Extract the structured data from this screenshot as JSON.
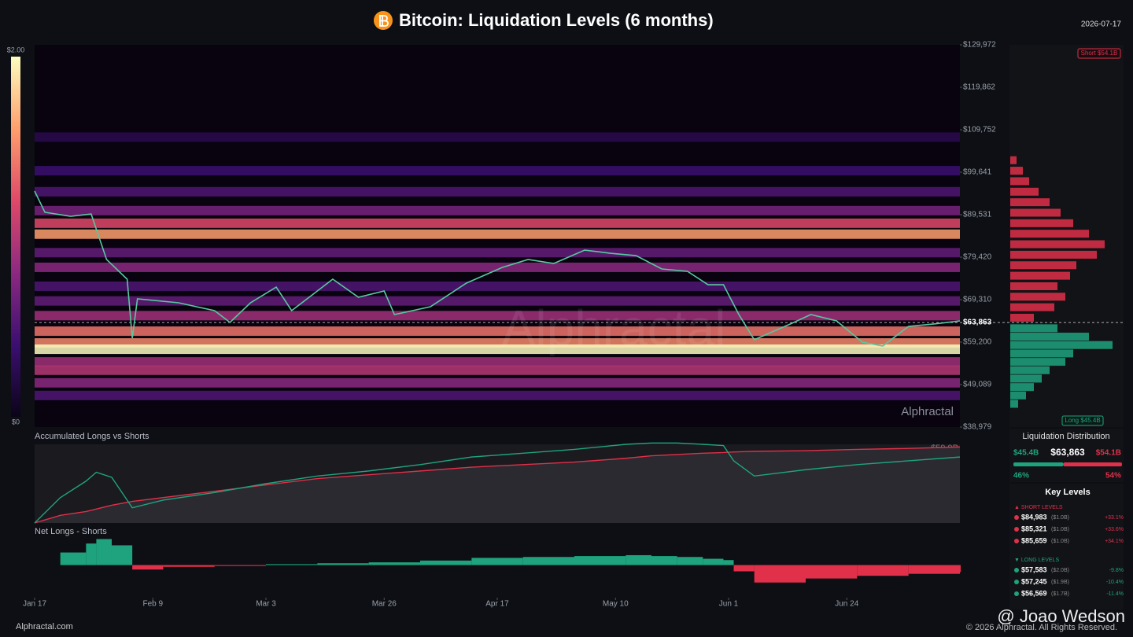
{
  "header": {
    "title": "Bitcoin: Liquidation Levels (6 months)",
    "date": "2026-07-17"
  },
  "chart_data": [
    {
      "type": "heatmap",
      "xlim": [
        0,
        180
      ],
      "xticks": [
        {
          "value": 0,
          "label": "Jan 17"
        },
        {
          "value": 23,
          "label": "Feb 9"
        },
        {
          "value": 45,
          "label": "Mar 3"
        },
        {
          "value": 68,
          "label": "Mar 26"
        },
        {
          "value": 90,
          "label": "Apr 17"
        },
        {
          "value": 113,
          "label": "May 10"
        },
        {
          "value": 135,
          "label": "Jun 1"
        },
        {
          "value": 158,
          "label": "Jun 24"
        }
      ],
      "ylim": [
        38979,
        129972
      ],
      "yticks": [
        {
          "value": 129972,
          "label": "$129,972"
        },
        {
          "value": 119862,
          "label": "$119,862"
        },
        {
          "value": 109752,
          "label": "$109,752"
        },
        {
          "value": 99641,
          "label": "$99,641"
        },
        {
          "value": 89531,
          "label": "$89,531"
        },
        {
          "value": 79420,
          "label": "$79,420"
        },
        {
          "value": 69310,
          "label": "$69,310"
        },
        {
          "value": 59200,
          "label": "$59,200"
        },
        {
          "value": 49089,
          "label": "$49,089"
        },
        {
          "value": 38979,
          "label": "$38,979"
        }
      ],
      "current_price": {
        "value": 63863,
        "label": "$63,863"
      },
      "clim": [
        0,
        2
      ],
      "cticks": [
        {
          "value": 2,
          "label": "$2.00"
        },
        {
          "value": 0,
          "label": "$0"
        }
      ],
      "heat_levels": [
        108000,
        100000,
        95000,
        90500,
        87500,
        84900,
        80500,
        77000,
        72500,
        69000,
        65500,
        61800,
        59000,
        57500,
        54500,
        52500,
        49500,
        46500
      ],
      "heat_values": [
        0.25,
        0.4,
        0.5,
        0.7,
        1.2,
        1.6,
        0.6,
        0.8,
        0.5,
        0.6,
        0.9,
        1.4,
        1.5,
        2.0,
        0.9,
        1.0,
        0.8,
        0.5
      ],
      "x": [
        0,
        2,
        7,
        11,
        14,
        18,
        19,
        20,
        28,
        35,
        38,
        42,
        47,
        50,
        58,
        63,
        68,
        70,
        77,
        84,
        91,
        96,
        101,
        107,
        112,
        117,
        122,
        127,
        131,
        134,
        137,
        140,
        147,
        151,
        156,
        161,
        165,
        170,
        175,
        180
      ],
      "values": [
        95150,
        90100,
        89150,
        89700,
        78860,
        74180,
        60130,
        69500,
        68560,
        66690,
        63880,
        68560,
        72300,
        66690,
        74180,
        69870,
        71370,
        65750,
        67620,
        73240,
        76990,
        78860,
        77920,
        81100,
        80350,
        79790,
        76610,
        76050,
        72860,
        72860,
        65750,
        59760,
        63510,
        65750,
        64250,
        59200,
        58260,
        62940,
        63510,
        64250
      ],
      "color": "#56c9a0"
    },
    {
      "type": "line",
      "title": "Accumulated Longs vs Shorts",
      "annotation": "$59.9B",
      "xlim": [
        0,
        180
      ],
      "ylim": [
        0,
        62
      ],
      "x": [
        0,
        5,
        10,
        12,
        15,
        19,
        25,
        35,
        45,
        55,
        65,
        75,
        85,
        95,
        105,
        115,
        120,
        125,
        130,
        134,
        136,
        140,
        150,
        160,
        170,
        180
      ],
      "series": [
        {
          "color": "#e0304a",
          "values": [
            0,
            6,
            9,
            11,
            14,
            17,
            20,
            25,
            30,
            35,
            38,
            41,
            44,
            46,
            48,
            51,
            53,
            54,
            55,
            55.5,
            56,
            56.5,
            57,
            58,
            58.8,
            59.9
          ]
        },
        {
          "color": "#1fa37e",
          "values": [
            0,
            20,
            33,
            40,
            36,
            12,
            18,
            24,
            31,
            37,
            41,
            46,
            52,
            55,
            58,
            62,
            63,
            63,
            62,
            61,
            49,
            37,
            42,
            46,
            49,
            52
          ]
        }
      ]
    },
    {
      "type": "net",
      "title": "Net Longs - Shorts",
      "xlim": [
        0,
        180
      ],
      "ylim": [
        -32,
        25
      ],
      "x": [
        0,
        5,
        10,
        12,
        15,
        19,
        25,
        35,
        45,
        55,
        65,
        75,
        85,
        95,
        105,
        115,
        120,
        125,
        130,
        134,
        136,
        140,
        150,
        160,
        170,
        180
      ],
      "values": [
        0,
        14,
        24,
        29,
        22,
        -5,
        -2,
        -1,
        1,
        2,
        3,
        5,
        8,
        9,
        10,
        11,
        10,
        9,
        7,
        5.5,
        -7,
        -19.5,
        -15,
        -12,
        -9.8,
        -7.9
      ],
      "colors": [
        "#1fa37e",
        "#e0304a"
      ]
    }
  ],
  "distribution": {
    "title": "Liquidation Distribution",
    "long_total": "$45.4B",
    "price": "$63,863",
    "short_total": "$54.1B",
    "long_pct": 46,
    "long_pct_label": "46%",
    "short_pct": 54,
    "short_pct_label": "54%",
    "short_tag": "Short $54.1B",
    "long_tag": "Long $45.4B",
    "xlim": [
      0,
      7
    ],
    "short_prices": [
      65000,
      67500,
      70000,
      72500,
      75000,
      77500,
      80000,
      82500,
      85000,
      87500,
      90000,
      92500,
      95000,
      97500,
      100000,
      102500
    ],
    "short_values": [
      1.5,
      2.8,
      3.5,
      3.0,
      3.8,
      4.2,
      5.5,
      6.0,
      5.0,
      4.0,
      3.2,
      2.5,
      1.8,
      1.2,
      0.8,
      0.4
    ],
    "long_prices": [
      62500,
      60500,
      58500,
      56500,
      54500,
      52500,
      50500,
      48500,
      46500,
      44500
    ],
    "long_values": [
      3,
      5,
      6.5,
      4,
      3.5,
      2.5,
      2,
      1.5,
      1,
      0.5
    ]
  },
  "key_levels": {
    "title": "Key Levels",
    "short_header": "▲ SHORT LEVELS",
    "short": [
      [
        "$84,983",
        "($1.0B)",
        "+33.1%"
      ],
      [
        "$85,321",
        "($1.0B)",
        "+33.6%"
      ],
      [
        "$85,659",
        "($1.0B)",
        "+34.1%"
      ]
    ],
    "long_header": "▼ LONG LEVELS",
    "long": [
      [
        "$57,583",
        "($2.0B)",
        "-9.8%"
      ],
      [
        "$57,245",
        "($1.9B)",
        "-10.4%"
      ],
      [
        "$56,569",
        "($1.7B)",
        "-11.4%"
      ]
    ]
  },
  "footer": {
    "site": "Alphractal.com",
    "author": "@ Joao Wedson",
    "copyright": "© 2026 Alphractal. All Rights Reserved.",
    "watermark": "Alphractal"
  }
}
